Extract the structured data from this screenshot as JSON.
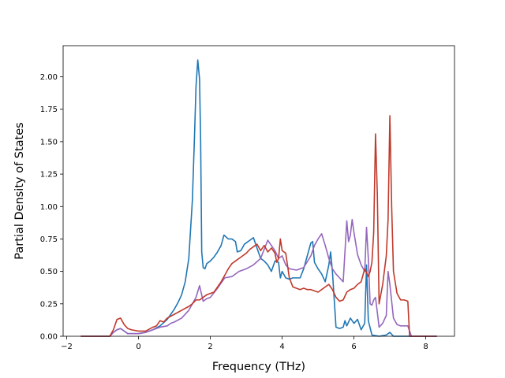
{
  "chart_data": {
    "type": "line",
    "title": "",
    "xlabel": "Frequency (THz)",
    "ylabel": "Partial Density of States",
    "xlim": [
      -2.1,
      8.8
    ],
    "ylim": [
      0.0,
      2.24
    ],
    "xticks": [
      {
        "value": -2,
        "label": "−2"
      },
      {
        "value": 0,
        "label": "0"
      },
      {
        "value": 2,
        "label": "2"
      },
      {
        "value": 4,
        "label": "4"
      },
      {
        "value": 6,
        "label": "6"
      },
      {
        "value": 8,
        "label": "8"
      }
    ],
    "yticks": [
      {
        "value": 0.0,
        "label": "0.00"
      },
      {
        "value": 0.25,
        "label": "0.25"
      },
      {
        "value": 0.5,
        "label": "0.50"
      },
      {
        "value": 0.75,
        "label": "0.75"
      },
      {
        "value": 1.0,
        "label": "1.00"
      },
      {
        "value": 1.25,
        "label": "1.25"
      },
      {
        "value": 1.5,
        "label": "1.50"
      },
      {
        "value": 1.75,
        "label": "1.75"
      },
      {
        "value": 2.0,
        "label": "2.00"
      }
    ],
    "grid": false,
    "legend": "none",
    "series": [
      {
        "color": "#1f77b4",
        "points": [
          [
            -1.6,
            0.0
          ],
          [
            -0.8,
            0.0
          ],
          [
            -0.7,
            0.03
          ],
          [
            -0.6,
            0.05
          ],
          [
            -0.5,
            0.06
          ],
          [
            -0.4,
            0.04
          ],
          [
            -0.3,
            0.02
          ],
          [
            0.0,
            0.02
          ],
          [
            0.2,
            0.03
          ],
          [
            0.4,
            0.05
          ],
          [
            0.6,
            0.08
          ],
          [
            0.8,
            0.13
          ],
          [
            0.9,
            0.17
          ],
          [
            1.0,
            0.21
          ],
          [
            1.1,
            0.26
          ],
          [
            1.2,
            0.32
          ],
          [
            1.3,
            0.42
          ],
          [
            1.4,
            0.6
          ],
          [
            1.5,
            1.05
          ],
          [
            1.56,
            1.55
          ],
          [
            1.6,
            1.92
          ],
          [
            1.65,
            2.13
          ],
          [
            1.7,
            1.98
          ],
          [
            1.73,
            1.5
          ],
          [
            1.76,
            0.65
          ],
          [
            1.8,
            0.53
          ],
          [
            1.85,
            0.52
          ],
          [
            1.9,
            0.56
          ],
          [
            2.0,
            0.58
          ],
          [
            2.1,
            0.61
          ],
          [
            2.2,
            0.65
          ],
          [
            2.3,
            0.7
          ],
          [
            2.38,
            0.78
          ],
          [
            2.5,
            0.75
          ],
          [
            2.6,
            0.75
          ],
          [
            2.7,
            0.73
          ],
          [
            2.75,
            0.65
          ],
          [
            2.85,
            0.66
          ],
          [
            2.95,
            0.71
          ],
          [
            3.1,
            0.74
          ],
          [
            3.2,
            0.76
          ],
          [
            3.3,
            0.68
          ],
          [
            3.4,
            0.6
          ],
          [
            3.5,
            0.58
          ],
          [
            3.6,
            0.55
          ],
          [
            3.7,
            0.5
          ],
          [
            3.8,
            0.58
          ],
          [
            3.9,
            0.57
          ],
          [
            3.95,
            0.45
          ],
          [
            4.0,
            0.5
          ],
          [
            4.1,
            0.45
          ],
          [
            4.2,
            0.44
          ],
          [
            4.3,
            0.45
          ],
          [
            4.4,
            0.45
          ],
          [
            4.5,
            0.45
          ],
          [
            4.6,
            0.52
          ],
          [
            4.7,
            0.62
          ],
          [
            4.8,
            0.72
          ],
          [
            4.85,
            0.73
          ],
          [
            4.9,
            0.57
          ],
          [
            5.0,
            0.52
          ],
          [
            5.1,
            0.48
          ],
          [
            5.2,
            0.42
          ],
          [
            5.3,
            0.55
          ],
          [
            5.35,
            0.65
          ],
          [
            5.4,
            0.5
          ],
          [
            5.5,
            0.07
          ],
          [
            5.6,
            0.06
          ],
          [
            5.7,
            0.07
          ],
          [
            5.75,
            0.12
          ],
          [
            5.8,
            0.08
          ],
          [
            5.9,
            0.14
          ],
          [
            6.0,
            0.1
          ],
          [
            6.1,
            0.13
          ],
          [
            6.2,
            0.05
          ],
          [
            6.3,
            0.1
          ],
          [
            6.35,
            0.55
          ],
          [
            6.4,
            0.12
          ],
          [
            6.5,
            0.01
          ],
          [
            6.7,
            0.0
          ],
          [
            6.9,
            0.01
          ],
          [
            7.0,
            0.03
          ],
          [
            7.1,
            0.0
          ],
          [
            7.5,
            0.0
          ],
          [
            8.3,
            0.0
          ]
        ]
      },
      {
        "color": "#9467bd",
        "points": [
          [
            -1.6,
            0.0
          ],
          [
            -0.8,
            0.0
          ],
          [
            -0.7,
            0.03
          ],
          [
            -0.6,
            0.05
          ],
          [
            -0.5,
            0.06
          ],
          [
            -0.4,
            0.04
          ],
          [
            -0.3,
            0.02
          ],
          [
            0.0,
            0.02
          ],
          [
            0.2,
            0.03
          ],
          [
            0.4,
            0.05
          ],
          [
            0.6,
            0.07
          ],
          [
            0.8,
            0.08
          ],
          [
            0.9,
            0.1
          ],
          [
            1.0,
            0.11
          ],
          [
            1.2,
            0.14
          ],
          [
            1.4,
            0.2
          ],
          [
            1.6,
            0.3
          ],
          [
            1.7,
            0.39
          ],
          [
            1.75,
            0.33
          ],
          [
            1.8,
            0.27
          ],
          [
            1.9,
            0.29
          ],
          [
            2.0,
            0.3
          ],
          [
            2.2,
            0.37
          ],
          [
            2.4,
            0.45
          ],
          [
            2.6,
            0.46
          ],
          [
            2.8,
            0.5
          ],
          [
            3.0,
            0.52
          ],
          [
            3.2,
            0.55
          ],
          [
            3.4,
            0.6
          ],
          [
            3.5,
            0.67
          ],
          [
            3.6,
            0.74
          ],
          [
            3.7,
            0.7
          ],
          [
            3.8,
            0.66
          ],
          [
            3.9,
            0.6
          ],
          [
            4.0,
            0.62
          ],
          [
            4.1,
            0.55
          ],
          [
            4.2,
            0.52
          ],
          [
            4.4,
            0.51
          ],
          [
            4.6,
            0.53
          ],
          [
            4.8,
            0.62
          ],
          [
            4.9,
            0.7
          ],
          [
            5.0,
            0.75
          ],
          [
            5.1,
            0.79
          ],
          [
            5.2,
            0.7
          ],
          [
            5.3,
            0.6
          ],
          [
            5.4,
            0.52
          ],
          [
            5.5,
            0.48
          ],
          [
            5.6,
            0.45
          ],
          [
            5.7,
            0.42
          ],
          [
            5.8,
            0.89
          ],
          [
            5.85,
            0.73
          ],
          [
            5.9,
            0.78
          ],
          [
            5.95,
            0.9
          ],
          [
            6.0,
            0.8
          ],
          [
            6.1,
            0.63
          ],
          [
            6.2,
            0.55
          ],
          [
            6.3,
            0.5
          ],
          [
            6.35,
            0.84
          ],
          [
            6.4,
            0.6
          ],
          [
            6.45,
            0.25
          ],
          [
            6.5,
            0.24
          ],
          [
            6.55,
            0.28
          ],
          [
            6.6,
            0.3
          ],
          [
            6.7,
            0.07
          ],
          [
            6.8,
            0.1
          ],
          [
            6.9,
            0.16
          ],
          [
            6.95,
            0.5
          ],
          [
            7.0,
            0.4
          ],
          [
            7.1,
            0.14
          ],
          [
            7.2,
            0.09
          ],
          [
            7.3,
            0.08
          ],
          [
            7.4,
            0.08
          ],
          [
            7.5,
            0.08
          ],
          [
            7.6,
            0.0
          ],
          [
            8.3,
            0.0
          ]
        ]
      },
      {
        "color": "#c0392b",
        "points": [
          [
            -1.6,
            0.0
          ],
          [
            -0.8,
            0.0
          ],
          [
            -0.7,
            0.05
          ],
          [
            -0.6,
            0.13
          ],
          [
            -0.5,
            0.14
          ],
          [
            -0.4,
            0.09
          ],
          [
            -0.3,
            0.06
          ],
          [
            -0.2,
            0.05
          ],
          [
            0.0,
            0.04
          ],
          [
            0.2,
            0.04
          ],
          [
            0.4,
            0.07
          ],
          [
            0.5,
            0.08
          ],
          [
            0.6,
            0.12
          ],
          [
            0.7,
            0.11
          ],
          [
            0.8,
            0.14
          ],
          [
            1.0,
            0.17
          ],
          [
            1.2,
            0.2
          ],
          [
            1.4,
            0.23
          ],
          [
            1.5,
            0.25
          ],
          [
            1.6,
            0.28
          ],
          [
            1.7,
            0.28
          ],
          [
            1.8,
            0.3
          ],
          [
            1.9,
            0.32
          ],
          [
            2.0,
            0.33
          ],
          [
            2.1,
            0.34
          ],
          [
            2.2,
            0.38
          ],
          [
            2.3,
            0.42
          ],
          [
            2.4,
            0.47
          ],
          [
            2.5,
            0.52
          ],
          [
            2.6,
            0.56
          ],
          [
            2.7,
            0.58
          ],
          [
            2.8,
            0.6
          ],
          [
            2.9,
            0.62
          ],
          [
            3.0,
            0.64
          ],
          [
            3.1,
            0.67
          ],
          [
            3.2,
            0.69
          ],
          [
            3.3,
            0.71
          ],
          [
            3.4,
            0.66
          ],
          [
            3.5,
            0.7
          ],
          [
            3.6,
            0.65
          ],
          [
            3.7,
            0.68
          ],
          [
            3.8,
            0.64
          ],
          [
            3.85,
            0.57
          ],
          [
            3.9,
            0.6
          ],
          [
            3.95,
            0.75
          ],
          [
            4.0,
            0.66
          ],
          [
            4.1,
            0.64
          ],
          [
            4.2,
            0.45
          ],
          [
            4.3,
            0.38
          ],
          [
            4.5,
            0.36
          ],
          [
            4.6,
            0.37
          ],
          [
            4.7,
            0.36
          ],
          [
            4.8,
            0.36
          ],
          [
            4.9,
            0.35
          ],
          [
            5.0,
            0.34
          ],
          [
            5.2,
            0.38
          ],
          [
            5.3,
            0.4
          ],
          [
            5.4,
            0.36
          ],
          [
            5.5,
            0.3
          ],
          [
            5.6,
            0.27
          ],
          [
            5.7,
            0.28
          ],
          [
            5.8,
            0.34
          ],
          [
            5.9,
            0.36
          ],
          [
            6.0,
            0.37
          ],
          [
            6.1,
            0.4
          ],
          [
            6.2,
            0.42
          ],
          [
            6.3,
            0.52
          ],
          [
            6.4,
            0.46
          ],
          [
            6.45,
            0.5
          ],
          [
            6.5,
            0.57
          ],
          [
            6.55,
            0.8
          ],
          [
            6.6,
            1.56
          ],
          [
            6.65,
            1.1
          ],
          [
            6.7,
            0.25
          ],
          [
            6.8,
            0.4
          ],
          [
            6.9,
            0.62
          ],
          [
            6.95,
            0.9
          ],
          [
            7.0,
            1.7
          ],
          [
            7.05,
            1.0
          ],
          [
            7.1,
            0.5
          ],
          [
            7.2,
            0.33
          ],
          [
            7.3,
            0.28
          ],
          [
            7.4,
            0.28
          ],
          [
            7.5,
            0.27
          ],
          [
            7.55,
            0.0
          ],
          [
            8.3,
            0.0
          ]
        ]
      }
    ]
  }
}
